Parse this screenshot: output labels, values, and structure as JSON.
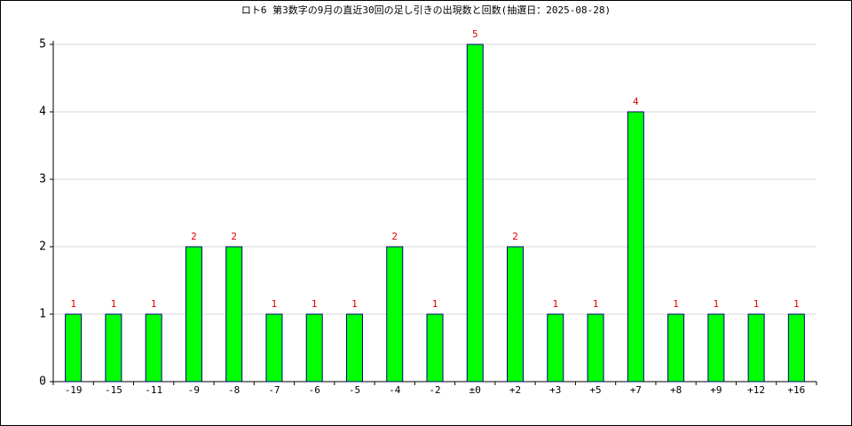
{
  "chart_data": {
    "type": "bar",
    "title": "ロト6 第3数字の9月の直近30回の足し引きの出現数と回数(抽選日：2025-08-28)",
    "categories": [
      "-19",
      "-15",
      "-11",
      "-9",
      "-8",
      "-7",
      "-6",
      "-5",
      "-4",
      "-2",
      "±0",
      "+2",
      "+3",
      "+5",
      "+7",
      "+8",
      "+9",
      "+12",
      "+16"
    ],
    "values": [
      1,
      1,
      1,
      2,
      2,
      1,
      1,
      1,
      2,
      1,
      5,
      2,
      1,
      1,
      4,
      1,
      1,
      1,
      1
    ],
    "color": "#00ff00",
    "edge_color": "#000080",
    "label_color": "#e00000",
    "ylim": [
      0,
      5
    ],
    "yticks": [
      0,
      1,
      2,
      3,
      4,
      5
    ],
    "grid": true
  }
}
